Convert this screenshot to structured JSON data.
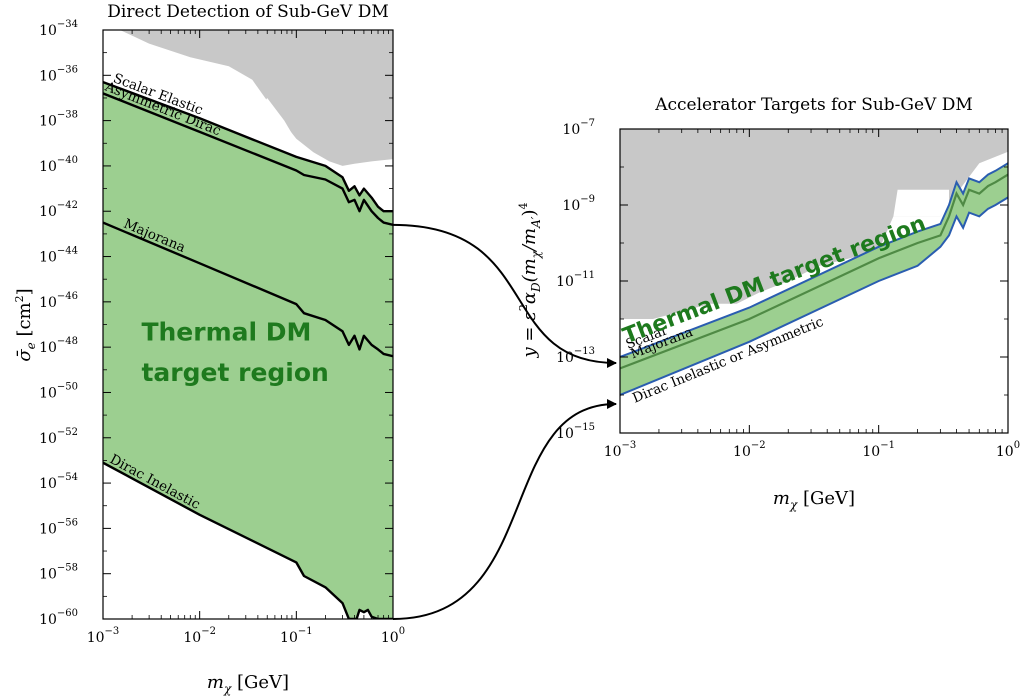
{
  "chart_data": [
    {
      "id": "left",
      "type": "area",
      "title": "Direct Detection of Sub-GeV DM",
      "xlabel": "mχ [GeV]",
      "ylabel": "σ̄e [cm²]",
      "xscale": "log",
      "yscale": "log",
      "xlim": [
        0.001,
        1
      ],
      "ylim": [
        1e-60,
        1e-34
      ],
      "x_ticks": [
        {
          "base": "10",
          "exp": "−3"
        },
        {
          "base": "10",
          "exp": "−2"
        },
        {
          "base": "10",
          "exp": "−1"
        },
        {
          "base": "10",
          "exp": "0"
        }
      ],
      "y_ticks": [
        {
          "base": "10",
          "exp": "−60"
        },
        {
          "base": "10",
          "exp": "−58"
        },
        {
          "base": "10",
          "exp": "−56"
        },
        {
          "base": "10",
          "exp": "−54"
        },
        {
          "base": "10",
          "exp": "−52"
        },
        {
          "base": "10",
          "exp": "−50"
        },
        {
          "base": "10",
          "exp": "−48"
        },
        {
          "base": "10",
          "exp": "−46"
        },
        {
          "base": "10",
          "exp": "−44"
        },
        {
          "base": "10",
          "exp": "−42"
        },
        {
          "base": "10",
          "exp": "−40"
        },
        {
          "base": "10",
          "exp": "−38"
        },
        {
          "base": "10",
          "exp": "−36"
        },
        {
          "base": "10",
          "exp": "−34"
        }
      ],
      "series": [
        {
          "name": "Scalar Elastic",
          "x": [
            0.001,
            0.01,
            0.1,
            0.2,
            0.3,
            0.35,
            0.4,
            0.45,
            0.5,
            0.6,
            0.7,
            0.8,
            1.0
          ],
          "log10_y": [
            -36.3,
            -37.9,
            -39.6,
            -40.0,
            -40.5,
            -41.1,
            -40.9,
            -41.3,
            -41.0,
            -41.4,
            -41.8,
            -42.0,
            -42.0
          ]
        },
        {
          "name": "Asymmetric Dirac",
          "x": [
            0.001,
            0.01,
            0.1,
            0.12,
            0.2,
            0.3,
            0.35,
            0.4,
            0.45,
            0.5,
            0.6,
            0.7,
            0.8,
            1.0
          ],
          "log10_y": [
            -36.8,
            -38.5,
            -40.2,
            -40.4,
            -40.6,
            -41.0,
            -41.6,
            -41.5,
            -42.0,
            -41.5,
            -42.0,
            -42.3,
            -42.5,
            -42.6
          ]
        },
        {
          "name": "Majorana",
          "x": [
            0.001,
            0.01,
            0.1,
            0.12,
            0.2,
            0.3,
            0.35,
            0.4,
            0.45,
            0.5,
            0.6,
            0.7,
            0.8,
            1.0
          ],
          "log10_y": [
            -42.5,
            -44.3,
            -46.1,
            -46.5,
            -46.8,
            -47.3,
            -47.9,
            -47.5,
            -48.1,
            -47.5,
            -47.9,
            -48.1,
            -48.3,
            -48.4
          ]
        },
        {
          "name": "Dirac Inelastic",
          "x": [
            0.001,
            0.01,
            0.1,
            0.12,
            0.2,
            0.3,
            0.35,
            0.4,
            0.42,
            0.45,
            0.5,
            0.55,
            0.6,
            0.7,
            0.8,
            1.0
          ],
          "log10_y": [
            -53.1,
            -55.4,
            -57.5,
            -58.1,
            -58.6,
            -59.3,
            -60.0,
            -60.0,
            -60.0,
            -59.6,
            -59.7,
            -59.6,
            -59.9,
            -60.0,
            -60.0,
            -60.0
          ]
        }
      ],
      "excluded_region": {
        "x": [
          0.0015,
          0.003,
          0.008,
          0.02,
          0.035,
          0.06,
          0.1,
          0.15,
          0.22,
          0.3,
          0.4,
          0.6,
          1.0
        ],
        "log10_y": [
          -34.0,
          -34.6,
          -35.2,
          -35.6,
          -36.2,
          -37.6,
          -38.8,
          -39.4,
          -39.8,
          -40.0,
          -39.9,
          -39.8,
          -39.7
        ]
      },
      "annotations": [
        {
          "text": "Thermal DM",
          "x": 0.0025,
          "log10_y": -47.7
        },
        {
          "text": "target region",
          "x": 0.0025,
          "log10_y": -49.5
        }
      ],
      "grid": false
    },
    {
      "id": "right",
      "type": "area",
      "title": "Accelerator Targets for Sub-GeV DM",
      "xlabel": "mχ [GeV]",
      "ylabel": "y = ε²αD(mχ/mA′)⁴",
      "xscale": "log",
      "yscale": "log",
      "xlim": [
        0.001,
        1
      ],
      "ylim": [
        1e-15,
        1e-07
      ],
      "x_ticks": [
        {
          "base": "10",
          "exp": "−3"
        },
        {
          "base": "10",
          "exp": "−2"
        },
        {
          "base": "10",
          "exp": "−1"
        },
        {
          "base": "10",
          "exp": "0"
        }
      ],
      "y_ticks": [
        {
          "base": "10",
          "exp": "−15"
        },
        {
          "base": "10",
          "exp": "−13"
        },
        {
          "base": "10",
          "exp": "−11"
        },
        {
          "base": "10",
          "exp": "−9"
        },
        {
          "base": "10",
          "exp": "−7"
        }
      ],
      "series": [
        {
          "name": "Scalar",
          "x": [
            0.001,
            0.01,
            0.1,
            0.2,
            0.3,
            0.35,
            0.4,
            0.45,
            0.5,
            0.6,
            0.7,
            0.8,
            1.0
          ],
          "log10_y": [
            -13.0,
            -11.7,
            -10.1,
            -9.7,
            -9.5,
            -9.0,
            -8.4,
            -8.7,
            -8.3,
            -8.4,
            -8.2,
            -8.1,
            -7.9
          ]
        },
        {
          "name": "Majorana",
          "x": [
            0.001,
            0.01,
            0.1,
            0.2,
            0.3,
            0.35,
            0.4,
            0.45,
            0.5,
            0.6,
            0.7,
            0.8,
            1.0
          ],
          "log10_y": [
            -13.3,
            -12.0,
            -10.4,
            -10.0,
            -9.8,
            -9.3,
            -8.7,
            -9.0,
            -8.6,
            -8.7,
            -8.5,
            -8.4,
            -8.2
          ]
        },
        {
          "name": "Dirac Inelastic or Asymmetric",
          "x": [
            0.001,
            0.01,
            0.1,
            0.2,
            0.3,
            0.35,
            0.4,
            0.45,
            0.5,
            0.6,
            0.7,
            0.8,
            1.0
          ],
          "log10_y": [
            -14.0,
            -12.6,
            -11.0,
            -10.6,
            -10.1,
            -9.8,
            -9.3,
            -9.6,
            -9.2,
            -9.3,
            -9.1,
            -9.0,
            -8.8
          ]
        }
      ],
      "excluded_region": {
        "x": [
          0.001,
          0.0018,
          0.003,
          0.005,
          0.008,
          0.012,
          0.02,
          0.035,
          0.06,
          0.1,
          0.13,
          0.2,
          0.3,
          0.4,
          0.6,
          1.0
        ],
        "log10_y": [
          -12.0,
          -12.0,
          -11.8,
          -11.6,
          -11.6,
          -11.3,
          -11.0,
          -10.6,
          -10.4,
          -10.2,
          -9.3,
          -9.3,
          -9.3,
          -8.7,
          -7.9,
          -7.6
        ]
      },
      "annotations": [
        {
          "text": "Thermal DM target region",
          "x": 0.001,
          "log10_y": -12.6
        }
      ],
      "grid": false
    }
  ],
  "colors": {
    "target_fill": "#9ccf90",
    "target_band_edge": "#2a5db0",
    "excluded": "#c8c8c8",
    "text_green": "#1e7a1e",
    "majorana_line": "#4f8a45"
  },
  "connectors": [
    {
      "from": "Asymmetric Dirac line at 1 GeV",
      "to": "right panel top edge of band"
    },
    {
      "from": "Dirac Inelastic line at 1 GeV",
      "to": "right panel bottom edge of band"
    }
  ]
}
